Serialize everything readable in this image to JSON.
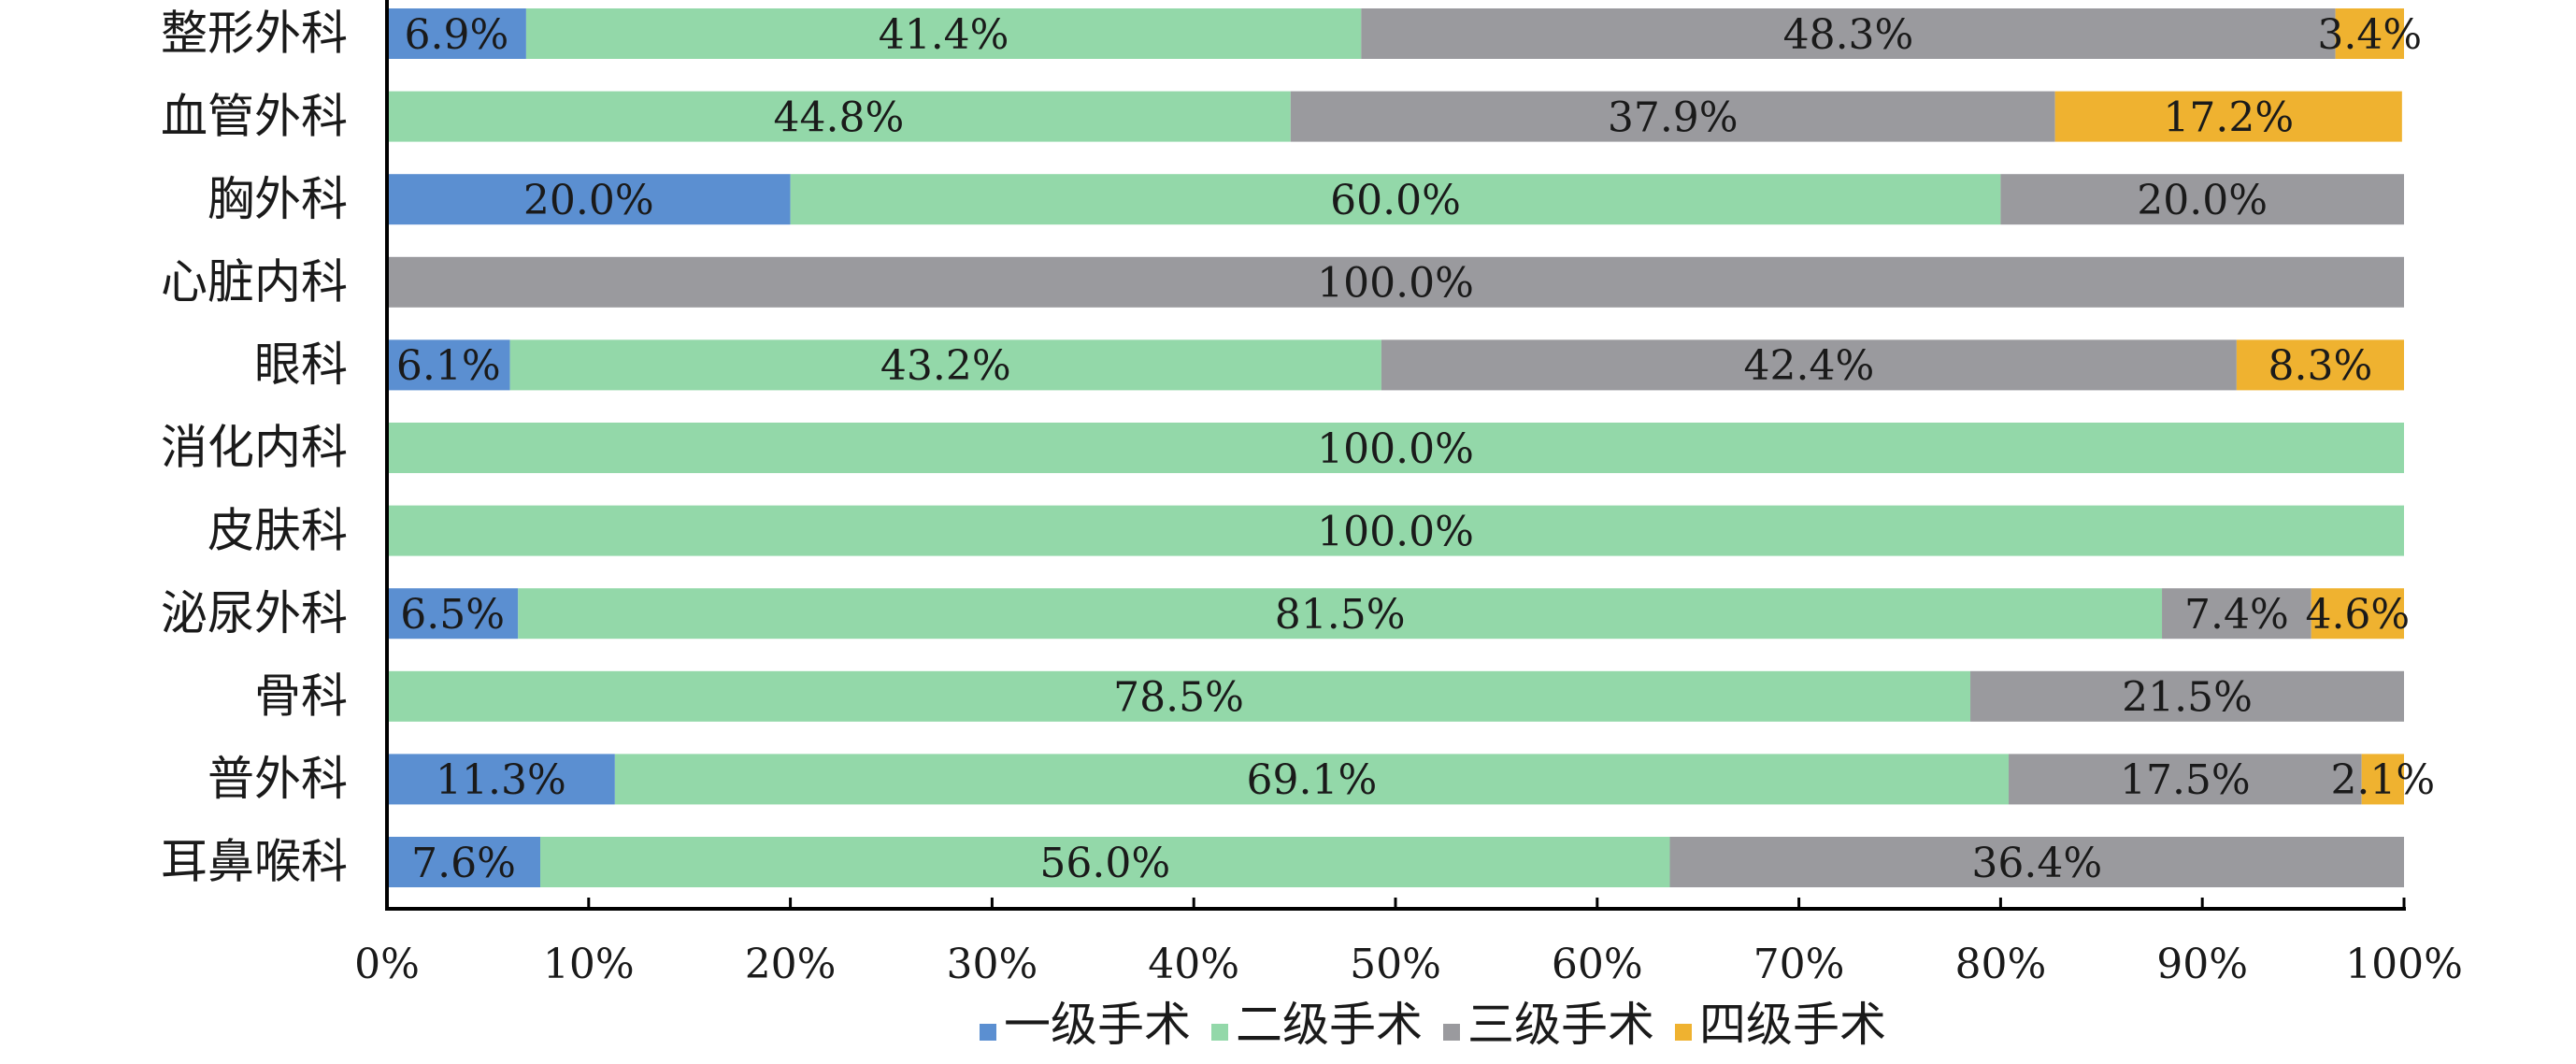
{
  "chart_data": {
    "type": "bar",
    "orientation": "horizontal",
    "stacked": true,
    "percent_stacked": true,
    "title": "",
    "xlabel": "",
    "ylabel": "",
    "xlim": [
      0,
      100
    ],
    "x_ticks": [
      "0%",
      "10%",
      "20%",
      "30%",
      "40%",
      "50%",
      "60%",
      "70%",
      "80%",
      "90%",
      "100%"
    ],
    "grid": false,
    "legend_position": "bottom",
    "categories": [
      "整形外科",
      "血管外科",
      "胸外科",
      "心脏内科",
      "眼科",
      "消化内科",
      "皮肤科",
      "泌尿外科",
      "骨科",
      "普外科",
      "耳鼻喉科"
    ],
    "series": [
      {
        "name": "一级手术",
        "color": "#5B8FD1",
        "values": [
          6.9,
          0,
          20.0,
          0,
          6.1,
          0,
          0,
          6.5,
          0,
          11.3,
          7.6
        ],
        "labels": [
          "6.9%",
          "",
          "20.0%",
          "",
          "6.1%",
          "",
          "",
          "6.5%",
          "",
          "11.3%",
          "7.6%"
        ]
      },
      {
        "name": "二级手术",
        "color": "#93D8A9",
        "values": [
          41.4,
          44.8,
          60.0,
          0,
          43.2,
          100.0,
          100.0,
          81.5,
          78.5,
          69.1,
          56.0
        ],
        "labels": [
          "41.4%",
          "44.8%",
          "60.0%",
          "",
          "43.2%",
          "100.0%",
          "100.0%",
          "81.5%",
          "78.5%",
          "69.1%",
          "56.0%"
        ]
      },
      {
        "name": "三级手术",
        "color": "#9A9A9E",
        "values": [
          48.3,
          37.9,
          20.0,
          100.0,
          42.4,
          0,
          0,
          7.4,
          21.5,
          17.5,
          36.4
        ],
        "labels": [
          "48.3%",
          "37.9%",
          "20.0%",
          "100.0%",
          "42.4%",
          "",
          "",
          "7.4%",
          "21.5%",
          "17.5%",
          "36.4%"
        ]
      },
      {
        "name": "四级手术",
        "color": "#EFB230",
        "values": [
          3.4,
          17.2,
          0,
          0,
          8.3,
          0,
          0,
          4.6,
          0,
          2.1,
          0
        ],
        "labels": [
          "3.4%",
          "17.2%",
          "",
          "",
          "8.3%",
          "",
          "",
          "4.6%",
          "",
          "2.1%",
          ""
        ]
      }
    ]
  }
}
